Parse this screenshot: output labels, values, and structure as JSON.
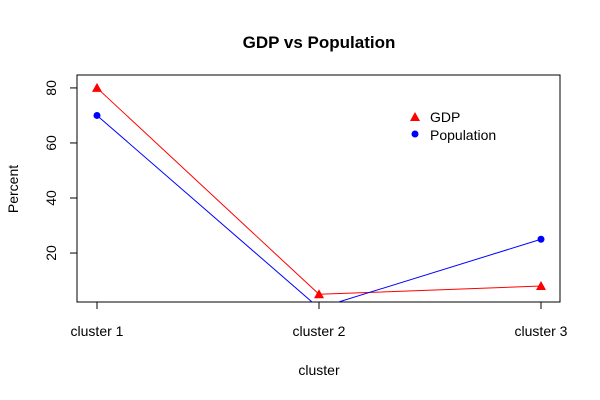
{
  "chart_data": {
    "type": "line",
    "title": "GDP vs Population",
    "xlabel": "cluster",
    "ylabel": "Percent",
    "categories": [
      "cluster 1",
      "cluster 2",
      "cluster 3"
    ],
    "series": [
      {
        "name": "GDP",
        "values": [
          80,
          5,
          8
        ],
        "color": "#ff0000",
        "marker": "triangle"
      },
      {
        "name": "Population",
        "values": [
          70,
          0,
          25
        ],
        "color": "#0000ff",
        "marker": "circle"
      }
    ],
    "yticks": [
      20,
      40,
      60,
      80
    ],
    "ylim": [
      2.2,
      84.7
    ],
    "grid": false,
    "legend_position": "top-right"
  }
}
